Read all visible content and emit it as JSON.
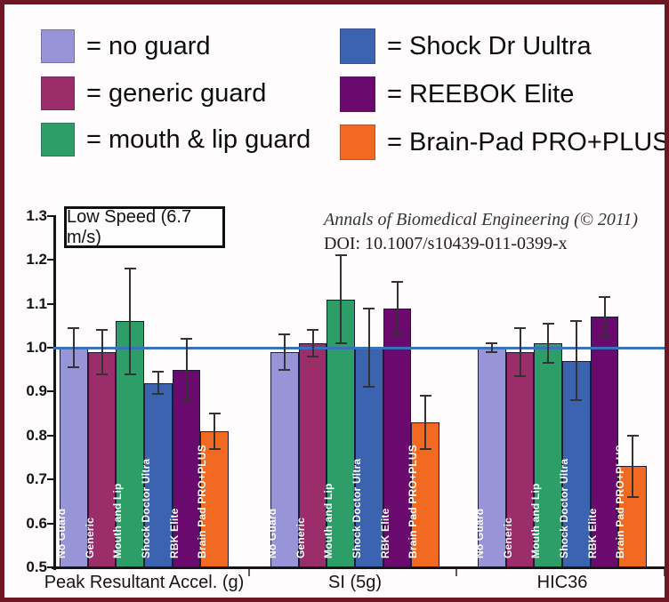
{
  "colors": {
    "frame_border": "#6e1624",
    "background": "#fffcfd",
    "axis": "#151515",
    "reference_line": "#3a72ba",
    "bar_label_text": "#ffffff"
  },
  "legend": {
    "items": [
      {
        "key": "no-guard",
        "label": "= no guard",
        "color": "#9794d8"
      },
      {
        "key": "generic-guard",
        "label": "= generic guard",
        "color": "#9b2d6b"
      },
      {
        "key": "mouth-lip-guard",
        "label": "= mouth & lip guard",
        "color": "#2e9e68"
      },
      {
        "key": "shock-dr-uultra",
        "label": "= Shock Dr Uultra",
        "color": "#3b63af"
      },
      {
        "key": "reebok-elite",
        "label": "= REEBOK Elite",
        "color": "#6a0a6e"
      },
      {
        "key": "brain-pad-pro-plus",
        "label": "= Brain-Pad PRO+PLUS",
        "color": "#f26a22"
      }
    ]
  },
  "annotations": {
    "condition_box": "Low Speed (6.7 m/s)",
    "citation_line1": "Annals of Biomedical Engineering (© 2011)",
    "citation_line2": "DOI: 10.1007/s10439-011-0399-x"
  },
  "chart_data": {
    "type": "bar",
    "title": "",
    "xlabel": "",
    "ylabel": "",
    "ylim": [
      0.5,
      1.3
    ],
    "yticks": [
      0.5,
      0.6,
      0.7,
      0.8,
      0.9,
      1.0,
      1.1,
      1.2,
      1.3
    ],
    "grid": false,
    "legend_position": "top",
    "reference_line_y": 1.0,
    "error_bars": true,
    "groups": [
      "Peak Resultant Accel. (g)",
      "SI (5g)",
      "HIC36"
    ],
    "series": [
      {
        "name": "No Guard",
        "color": "#9794d8",
        "values": [
          1.0,
          0.99,
          1.0
        ],
        "errors": [
          0.045,
          0.04,
          0.01
        ]
      },
      {
        "name": "Generic",
        "color": "#9b2d6b",
        "values": [
          0.99,
          1.01,
          0.99
        ],
        "errors": [
          0.05,
          0.03,
          0.055
        ]
      },
      {
        "name": "Mouth and Lip",
        "color": "#2e9e68",
        "values": [
          1.06,
          1.11,
          1.01
        ],
        "errors": [
          0.12,
          0.1,
          0.045
        ]
      },
      {
        "name": "Shock Doctor Ultra",
        "color": "#3b63af",
        "values": [
          0.92,
          1.0,
          0.97
        ],
        "errors": [
          0.025,
          0.09,
          0.09
        ]
      },
      {
        "name": "RBK Elite",
        "color": "#6a0a6e",
        "values": [
          0.95,
          1.09,
          1.07
        ],
        "errors": [
          0.07,
          0.06,
          0.045
        ]
      },
      {
        "name": "Brain Pad PRO+PLUS",
        "color": "#f26a22",
        "values": [
          0.81,
          0.83,
          0.73
        ],
        "errors": [
          0.04,
          0.06,
          0.07
        ]
      }
    ]
  }
}
